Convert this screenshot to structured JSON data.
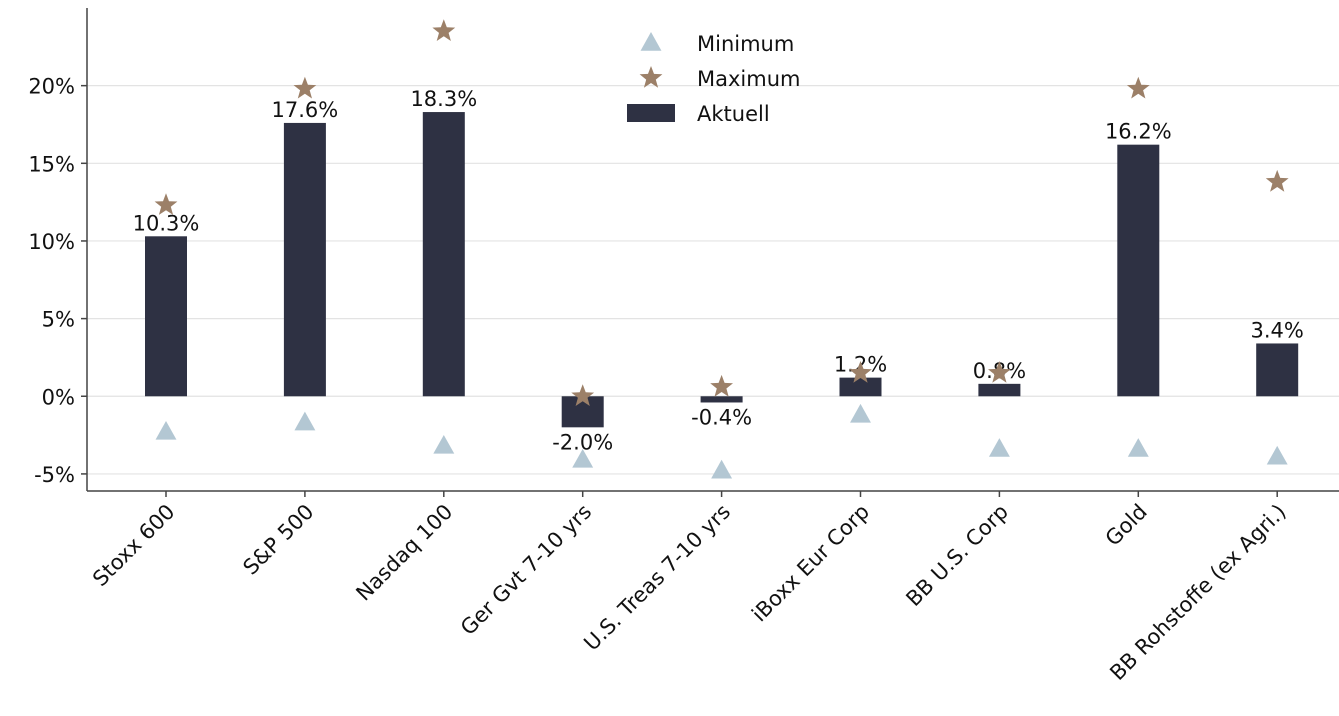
{
  "chart_data": {
    "type": "bar",
    "categories": [
      "Stoxx 600",
      "S&P 500",
      "Nasdaq 100",
      "Ger Gvt 7-10 yrs",
      "U.S. Treas 7-10 yrs",
      "iBoxx Eur Corp",
      "BB U.S. Corp",
      "Gold",
      "BB Rohstoffe (ex Agri.)"
    ],
    "series": [
      {
        "name": "Minimum",
        "color": "#b3c7d3",
        "marker": "triangle",
        "values": [
          -2.3,
          -1.7,
          -3.2,
          -4.1,
          -4.8,
          -1.2,
          -3.4,
          -3.4,
          -3.9
        ]
      },
      {
        "name": "Maximum",
        "color": "#9c8068",
        "marker": "star",
        "values": [
          12.3,
          19.8,
          23.5,
          0.0,
          0.6,
          1.5,
          1.5,
          19.8,
          13.8
        ]
      },
      {
        "name": "Aktuell",
        "color": "#2e3143",
        "marker": "bar",
        "values": [
          10.3,
          17.6,
          18.3,
          -2.0,
          -0.4,
          1.2,
          0.8,
          16.2,
          3.4
        ],
        "value_labels": [
          "10.3%",
          "17.6%",
          "18.3%",
          "-2.0%",
          "-0.4%",
          "1.2%",
          "0.8%",
          "16.2%",
          "3.4%"
        ]
      }
    ],
    "ylim": [
      -6.1,
      25
    ],
    "yticks": [
      {
        "value": -5,
        "label": "-5%"
      },
      {
        "value": 0,
        "label": "0%"
      },
      {
        "value": 5,
        "label": "5%"
      },
      {
        "value": 10,
        "label": "10%"
      },
      {
        "value": 15,
        "label": "15%"
      },
      {
        "value": 20,
        "label": "20%"
      }
    ],
    "grid": true,
    "legend": "upper center"
  }
}
